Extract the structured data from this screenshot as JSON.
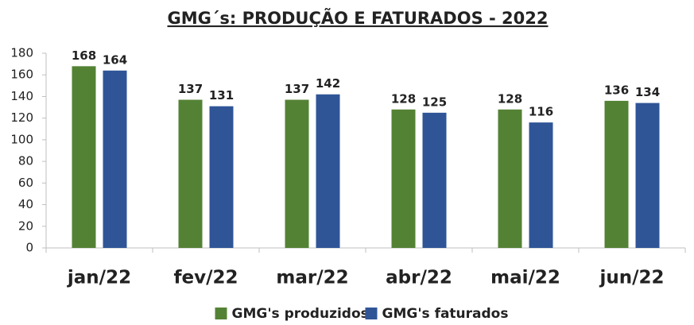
{
  "chart_data": {
    "type": "bar",
    "title": "GMG´s: PRODUÇÃO E FATURADOS - 2022",
    "categories": [
      "jan/22",
      "fev/22",
      "mar/22",
      "abr/22",
      "mai/22",
      "jun/22"
    ],
    "series": [
      {
        "name": "GMG's produzidos",
        "color": "#548235",
        "values": [
          168,
          137,
          137,
          128,
          128,
          136
        ]
      },
      {
        "name": "GMG's faturados",
        "color": "#2f5597",
        "values": [
          164,
          131,
          142,
          125,
          116,
          134
        ]
      }
    ],
    "ylim": [
      0,
      180
    ],
    "yticks": [
      0,
      20,
      40,
      60,
      80,
      100,
      120,
      140,
      160,
      180
    ],
    "legend": "bottom",
    "grid": false
  }
}
